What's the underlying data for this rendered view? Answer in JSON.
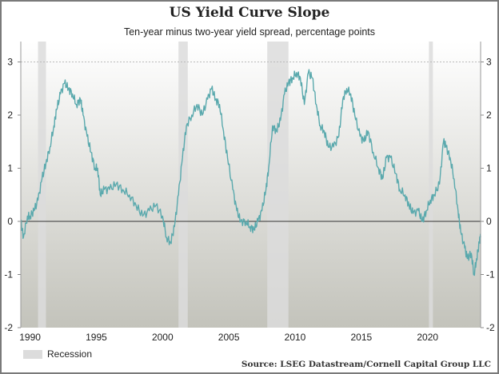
{
  "chart_data": {
    "type": "line",
    "title": "US Yield Curve Slope",
    "subtitle": "Ten-year minus two-year yield spread, percentage points",
    "xlabel": "",
    "ylabel": "",
    "xlim": [
      1989.3,
      2024.0
    ],
    "ylim": [
      -2,
      3
    ],
    "x_ticks": [
      1990,
      1995,
      2000,
      2005,
      2010,
      2015,
      2020
    ],
    "x_tick_labels": [
      "1990",
      "1995",
      "2000",
      "2005",
      "2010",
      "2015",
      "2020"
    ],
    "y_ticks": [
      3,
      2,
      1,
      0,
      -1,
      -2
    ],
    "y_tick_labels": [
      "3",
      "2",
      "1",
      "0",
      "-1",
      "-2"
    ],
    "colors": {
      "series": "#5aa9ad",
      "recession": "#dcdcdc",
      "zero_line": "#333333"
    },
    "legend": {
      "position": "bottom-left",
      "entries": [
        "Recession"
      ]
    },
    "recessions": [
      [
        1990.6,
        1991.2
      ],
      [
        2001.2,
        2001.9
      ],
      [
        2007.9,
        2009.5
      ],
      [
        2020.1,
        2020.4
      ]
    ],
    "series": [
      {
        "name": "10Y-2Y spread",
        "x": [
          1989.3,
          1989.5,
          1989.8,
          1990.0,
          1990.3,
          1990.6,
          1990.9,
          1991.2,
          1991.5,
          1991.8,
          1992.0,
          1992.3,
          1992.6,
          1992.9,
          1993.2,
          1993.5,
          1993.8,
          1994.0,
          1994.3,
          1994.6,
          1994.9,
          1995.1,
          1995.3,
          1995.6,
          1996.0,
          1996.5,
          1997.0,
          1997.5,
          1998.0,
          1998.5,
          1999.0,
          1999.5,
          2000.0,
          2000.3,
          2000.6,
          2000.9,
          2001.2,
          2001.5,
          2001.8,
          2002.2,
          2002.6,
          2003.0,
          2003.4,
          2003.7,
          2004.0,
          2004.3,
          2004.6,
          2004.9,
          2005.3,
          2005.6,
          2005.9,
          2006.3,
          2006.6,
          2006.9,
          2007.2,
          2007.5,
          2007.8,
          2008.0,
          2008.3,
          2008.6,
          2008.9,
          2009.2,
          2009.5,
          2009.8,
          2010.1,
          2010.4,
          2010.7,
          2011.0,
          2011.3,
          2011.6,
          2011.9,
          2012.2,
          2012.5,
          2012.9,
          2013.3,
          2013.6,
          2013.9,
          2014.2,
          2014.5,
          2014.9,
          2015.2,
          2015.5,
          2015.9,
          2016.3,
          2016.6,
          2016.9,
          2017.2,
          2017.6,
          2017.9,
          2018.3,
          2018.6,
          2018.9,
          2019.3,
          2019.6,
          2019.9,
          2020.2,
          2020.5,
          2020.9,
          2021.2,
          2021.4,
          2021.7,
          2022.0,
          2022.3,
          2022.5,
          2022.8,
          2023.0,
          2023.3,
          2023.5,
          2023.7,
          2023.9,
          2024.0
        ],
        "y": [
          0.0,
          -0.3,
          0.1,
          0.1,
          0.2,
          0.4,
          0.8,
          1.1,
          1.4,
          1.8,
          2.1,
          2.4,
          2.6,
          2.5,
          2.4,
          2.2,
          2.3,
          2.0,
          1.6,
          1.3,
          1.0,
          1.0,
          0.5,
          0.6,
          0.6,
          0.7,
          0.6,
          0.5,
          0.3,
          0.1,
          0.2,
          0.3,
          0.1,
          -0.3,
          -0.4,
          -0.1,
          0.5,
          1.2,
          1.8,
          2.0,
          2.2,
          2.0,
          2.3,
          2.5,
          2.3,
          2.2,
          1.7,
          1.2,
          0.6,
          0.2,
          0.0,
          0.0,
          -0.1,
          -0.15,
          0.0,
          0.2,
          0.6,
          1.0,
          1.8,
          1.7,
          1.9,
          2.4,
          2.6,
          2.7,
          2.8,
          2.7,
          2.2,
          2.8,
          2.7,
          2.2,
          1.8,
          1.7,
          1.4,
          1.4,
          1.6,
          2.3,
          2.5,
          2.4,
          2.0,
          1.6,
          1.5,
          1.7,
          1.3,
          1.0,
          0.8,
          1.2,
          1.2,
          0.9,
          0.6,
          0.5,
          0.3,
          0.15,
          0.2,
          0.0,
          0.2,
          0.4,
          0.5,
          0.7,
          1.5,
          1.4,
          1.2,
          0.8,
          0.2,
          -0.2,
          -0.5,
          -0.7,
          -0.6,
          -1.0,
          -0.7,
          -0.4,
          -0.3
        ]
      }
    ]
  },
  "source": "Source: LSEG Datastream/Cornell Capital Group LLC"
}
